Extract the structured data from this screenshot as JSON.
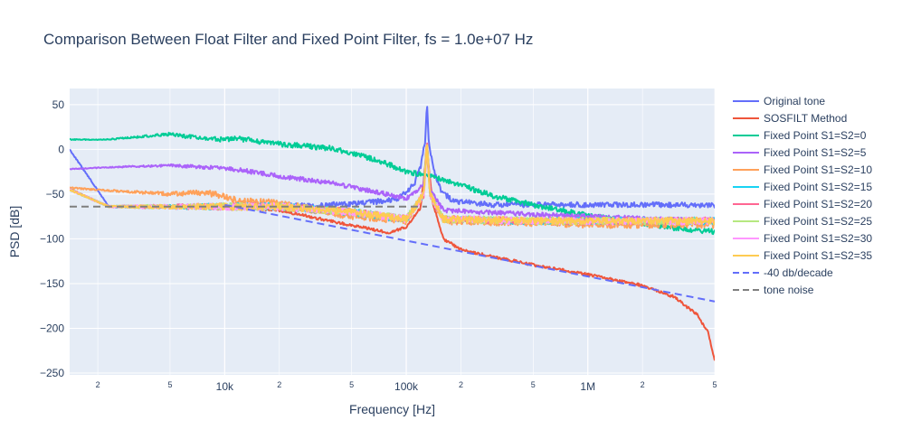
{
  "chart_data": {
    "type": "line",
    "title": "Comparison Between Float Filter and Fixed Point Filter, fs = 1.0e+07 Hz",
    "xlabel": "Frequency [Hz]",
    "ylabel": "PSD [dB]",
    "x_scale": "log",
    "xlim": [
      1400,
      5000000
    ],
    "ylim": [
      -252,
      68
    ],
    "grid": true,
    "legend_position": "right",
    "x_ticks_major": [
      {
        "value": 10000,
        "label": "10k"
      },
      {
        "value": 100000,
        "label": "100k"
      },
      {
        "value": 1000000,
        "label": "1M"
      }
    ],
    "x_ticks_minor": [
      {
        "value": 2000,
        "label": "2"
      },
      {
        "value": 5000,
        "label": "5"
      },
      {
        "value": 20000,
        "label": "2"
      },
      {
        "value": 50000,
        "label": "5"
      },
      {
        "value": 200000,
        "label": "2"
      },
      {
        "value": 500000,
        "label": "5"
      },
      {
        "value": 2000000,
        "label": "2"
      },
      {
        "value": 5000000,
        "label": "5"
      }
    ],
    "y_ticks": [
      {
        "value": 50,
        "label": "50"
      },
      {
        "value": 0,
        "label": "0"
      },
      {
        "value": -50,
        "label": "−50"
      },
      {
        "value": -100,
        "label": "−100"
      },
      {
        "value": -150,
        "label": "−150"
      },
      {
        "value": -200,
        "label": "−200"
      },
      {
        "value": -250,
        "label": "−250"
      }
    ],
    "series": [
      {
        "name": "Original tone",
        "color": "#636efa",
        "dash": "solid",
        "noise": 3,
        "points": [
          [
            1400,
            0
          ],
          [
            2300,
            -64
          ],
          [
            5000,
            -64
          ],
          [
            10000,
            -64
          ],
          [
            30000,
            -63
          ],
          [
            60000,
            -60
          ],
          [
            90000,
            -55
          ],
          [
            110000,
            -40
          ],
          [
            120000,
            -20
          ],
          [
            127000,
            10
          ],
          [
            130000,
            53
          ],
          [
            133000,
            10
          ],
          [
            140000,
            -20
          ],
          [
            155000,
            -45
          ],
          [
            180000,
            -58
          ],
          [
            300000,
            -62
          ],
          [
            1000000,
            -62
          ],
          [
            5000000,
            -62
          ]
        ]
      },
      {
        "name": "SOSFILT Method",
        "color": "#ef553b",
        "dash": "solid",
        "noise": 1.5,
        "points": [
          [
            1400,
            -44
          ],
          [
            2300,
            -64
          ],
          [
            10000,
            -64
          ],
          [
            20000,
            -68
          ],
          [
            40000,
            -81
          ],
          [
            80000,
            -93
          ],
          [
            100000,
            -87
          ],
          [
            120000,
            -65
          ],
          [
            127000,
            -20
          ],
          [
            130000,
            10
          ],
          [
            133000,
            -20
          ],
          [
            140000,
            -60
          ],
          [
            160000,
            -100
          ],
          [
            200000,
            -112
          ],
          [
            300000,
            -120
          ],
          [
            500000,
            -129
          ],
          [
            1000000,
            -140
          ],
          [
            2000000,
            -152
          ],
          [
            3000000,
            -165
          ],
          [
            4000000,
            -185
          ],
          [
            4600000,
            -205
          ],
          [
            5000000,
            -235
          ]
        ]
      },
      {
        "name": "Fixed Point S1=S2=0",
        "color": "#00cc96",
        "dash": "solid",
        "noise": 3,
        "points": [
          [
            1400,
            11
          ],
          [
            2300,
            11
          ],
          [
            5000,
            17
          ],
          [
            7000,
            13
          ],
          [
            10000,
            11
          ],
          [
            12000,
            12
          ],
          [
            20000,
            6
          ],
          [
            40000,
            1
          ],
          [
            70000,
            -12
          ],
          [
            100000,
            -25
          ],
          [
            150000,
            -32
          ],
          [
            200000,
            -40
          ],
          [
            300000,
            -52
          ],
          [
            500000,
            -62
          ],
          [
            1000000,
            -74
          ],
          [
            2000000,
            -83
          ],
          [
            3000000,
            -88
          ],
          [
            5000000,
            -92
          ]
        ]
      },
      {
        "name": "Fixed Point S1=S2=5",
        "color": "#ab63fa",
        "dash": "solid",
        "noise": 2.5,
        "points": [
          [
            1400,
            -22
          ],
          [
            2300,
            -20
          ],
          [
            5000,
            -18
          ],
          [
            8000,
            -20
          ],
          [
            12000,
            -23
          ],
          [
            20000,
            -30
          ],
          [
            40000,
            -38
          ],
          [
            70000,
            -48
          ],
          [
            100000,
            -55
          ],
          [
            125000,
            -40
          ],
          [
            130000,
            0
          ],
          [
            135000,
            -45
          ],
          [
            160000,
            -68
          ],
          [
            250000,
            -70
          ],
          [
            1000000,
            -75
          ],
          [
            5000000,
            -80
          ]
        ]
      },
      {
        "name": "Fixed Point S1=S2=10",
        "color": "#ffa15a",
        "dash": "solid",
        "noise": 4,
        "points": [
          [
            1400,
            -43
          ],
          [
            2300,
            -46
          ],
          [
            5000,
            -50
          ],
          [
            8000,
            -48
          ],
          [
            12000,
            -58
          ],
          [
            20000,
            -60
          ],
          [
            40000,
            -72
          ],
          [
            70000,
            -78
          ],
          [
            100000,
            -80
          ],
          [
            125000,
            -50
          ],
          [
            130000,
            5
          ],
          [
            135000,
            -50
          ],
          [
            160000,
            -80
          ],
          [
            500000,
            -82
          ],
          [
            1000000,
            -84
          ],
          [
            5000000,
            -84
          ]
        ]
      },
      {
        "name": "Fixed Point S1=S2=15",
        "color": "#19d3f3",
        "dash": "solid",
        "noise": 4,
        "points": [
          [
            1400,
            -45
          ],
          [
            2300,
            -64
          ],
          [
            10000,
            -64
          ],
          [
            20000,
            -64
          ],
          [
            50000,
            -70
          ],
          [
            100000,
            -78
          ],
          [
            125000,
            -50
          ],
          [
            130000,
            8
          ],
          [
            135000,
            -50
          ],
          [
            160000,
            -78
          ],
          [
            500000,
            -80
          ],
          [
            5000000,
            -80
          ]
        ]
      },
      {
        "name": "Fixed Point S1=S2=20",
        "color": "#ff6692",
        "dash": "solid",
        "noise": 4,
        "points": [
          [
            1400,
            -45
          ],
          [
            2300,
            -64
          ],
          [
            10000,
            -64
          ],
          [
            20000,
            -64
          ],
          [
            50000,
            -70
          ],
          [
            100000,
            -78
          ],
          [
            125000,
            -50
          ],
          [
            130000,
            8
          ],
          [
            135000,
            -50
          ],
          [
            160000,
            -78
          ],
          [
            500000,
            -80
          ],
          [
            5000000,
            -80
          ]
        ]
      },
      {
        "name": "Fixed Point S1=S2=25",
        "color": "#b6e880",
        "dash": "solid",
        "noise": 4,
        "points": [
          [
            1400,
            -45
          ],
          [
            2300,
            -64
          ],
          [
            10000,
            -64
          ],
          [
            20000,
            -64
          ],
          [
            50000,
            -70
          ],
          [
            100000,
            -78
          ],
          [
            125000,
            -50
          ],
          [
            130000,
            8
          ],
          [
            135000,
            -50
          ],
          [
            160000,
            -78
          ],
          [
            500000,
            -80
          ],
          [
            5000000,
            -80
          ]
        ]
      },
      {
        "name": "Fixed Point S1=S2=30",
        "color": "#ff97ff",
        "dash": "solid",
        "noise": 4,
        "points": [
          [
            1400,
            -45
          ],
          [
            2300,
            -64
          ],
          [
            10000,
            -64
          ],
          [
            20000,
            -64
          ],
          [
            50000,
            -70
          ],
          [
            100000,
            -78
          ],
          [
            125000,
            -50
          ],
          [
            130000,
            8
          ],
          [
            135000,
            -50
          ],
          [
            160000,
            -78
          ],
          [
            500000,
            -80
          ],
          [
            5000000,
            -80
          ]
        ]
      },
      {
        "name": "Fixed Point S1=S2=35",
        "color": "#fecb52",
        "dash": "solid",
        "noise": 4,
        "points": [
          [
            1400,
            -45
          ],
          [
            2300,
            -64
          ],
          [
            10000,
            -64
          ],
          [
            20000,
            -64
          ],
          [
            50000,
            -70
          ],
          [
            100000,
            -78
          ],
          [
            125000,
            -50
          ],
          [
            130000,
            8
          ],
          [
            135000,
            -50
          ],
          [
            160000,
            -78
          ],
          [
            500000,
            -80
          ],
          [
            5000000,
            -80
          ]
        ]
      },
      {
        "name": "-40 db/decade",
        "color": "#636efa",
        "dash": "dash",
        "noise": 0,
        "points": [
          [
            10000,
            -62
          ],
          [
            5000000,
            -170
          ]
        ]
      },
      {
        "name": "tone noise",
        "color": "#7f7f7f",
        "dash": "dash",
        "noise": 0,
        "points": [
          [
            1400,
            -64
          ],
          [
            130000,
            -64
          ]
        ]
      }
    ]
  }
}
